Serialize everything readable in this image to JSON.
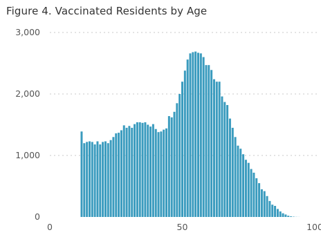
{
  "chart_data": {
    "type": "bar",
    "title": "Figure 4. Vaccinated Residents by Age",
    "xlabel": "",
    "ylabel": "",
    "xlim": [
      0,
      100
    ],
    "ylim": [
      0,
      3000
    ],
    "grid": true,
    "color": "#3A9BBE",
    "gridline_color": "#c8c8c8",
    "y_ticks": [
      {
        "value": 0,
        "label": "0"
      },
      {
        "value": 1000,
        "label": "1,000"
      },
      {
        "value": 2000,
        "label": "2,000"
      },
      {
        "value": 3000,
        "label": "3,000"
      }
    ],
    "x_ticks": [
      {
        "value": 0,
        "label": "0"
      },
      {
        "value": 50,
        "label": "50"
      },
      {
        "value": 100,
        "label": "100"
      }
    ],
    "x": [
      12,
      13,
      14,
      15,
      16,
      17,
      18,
      19,
      20,
      21,
      22,
      23,
      24,
      25,
      26,
      27,
      28,
      29,
      30,
      31,
      32,
      33,
      34,
      35,
      36,
      37,
      38,
      39,
      40,
      41,
      42,
      43,
      44,
      45,
      46,
      47,
      48,
      49,
      50,
      51,
      52,
      53,
      54,
      55,
      56,
      57,
      58,
      59,
      60,
      61,
      62,
      63,
      64,
      65,
      66,
      67,
      68,
      69,
      70,
      71,
      72,
      73,
      74,
      75,
      76,
      77,
      78,
      79,
      80,
      81,
      82,
      83,
      84,
      85,
      86,
      87,
      88,
      89,
      90,
      91,
      92,
      93,
      94,
      95,
      96,
      97,
      98,
      99,
      100
    ],
    "values": [
      1390,
      1200,
      1220,
      1230,
      1220,
      1180,
      1230,
      1180,
      1220,
      1230,
      1200,
      1250,
      1300,
      1360,
      1370,
      1410,
      1490,
      1450,
      1480,
      1450,
      1510,
      1540,
      1540,
      1530,
      1540,
      1500,
      1470,
      1510,
      1430,
      1380,
      1390,
      1420,
      1440,
      1640,
      1620,
      1710,
      1850,
      2000,
      2200,
      2380,
      2560,
      2660,
      2680,
      2690,
      2670,
      2660,
      2600,
      2470,
      2470,
      2390,
      2240,
      2200,
      2200,
      1960,
      1870,
      1820,
      1600,
      1450,
      1300,
      1160,
      1110,
      1020,
      930,
      880,
      780,
      720,
      630,
      550,
      450,
      420,
      340,
      260,
      200,
      180,
      130,
      90,
      60,
      40,
      20,
      10,
      5,
      2,
      1,
      0,
      0,
      0,
      0,
      0,
      0
    ]
  }
}
